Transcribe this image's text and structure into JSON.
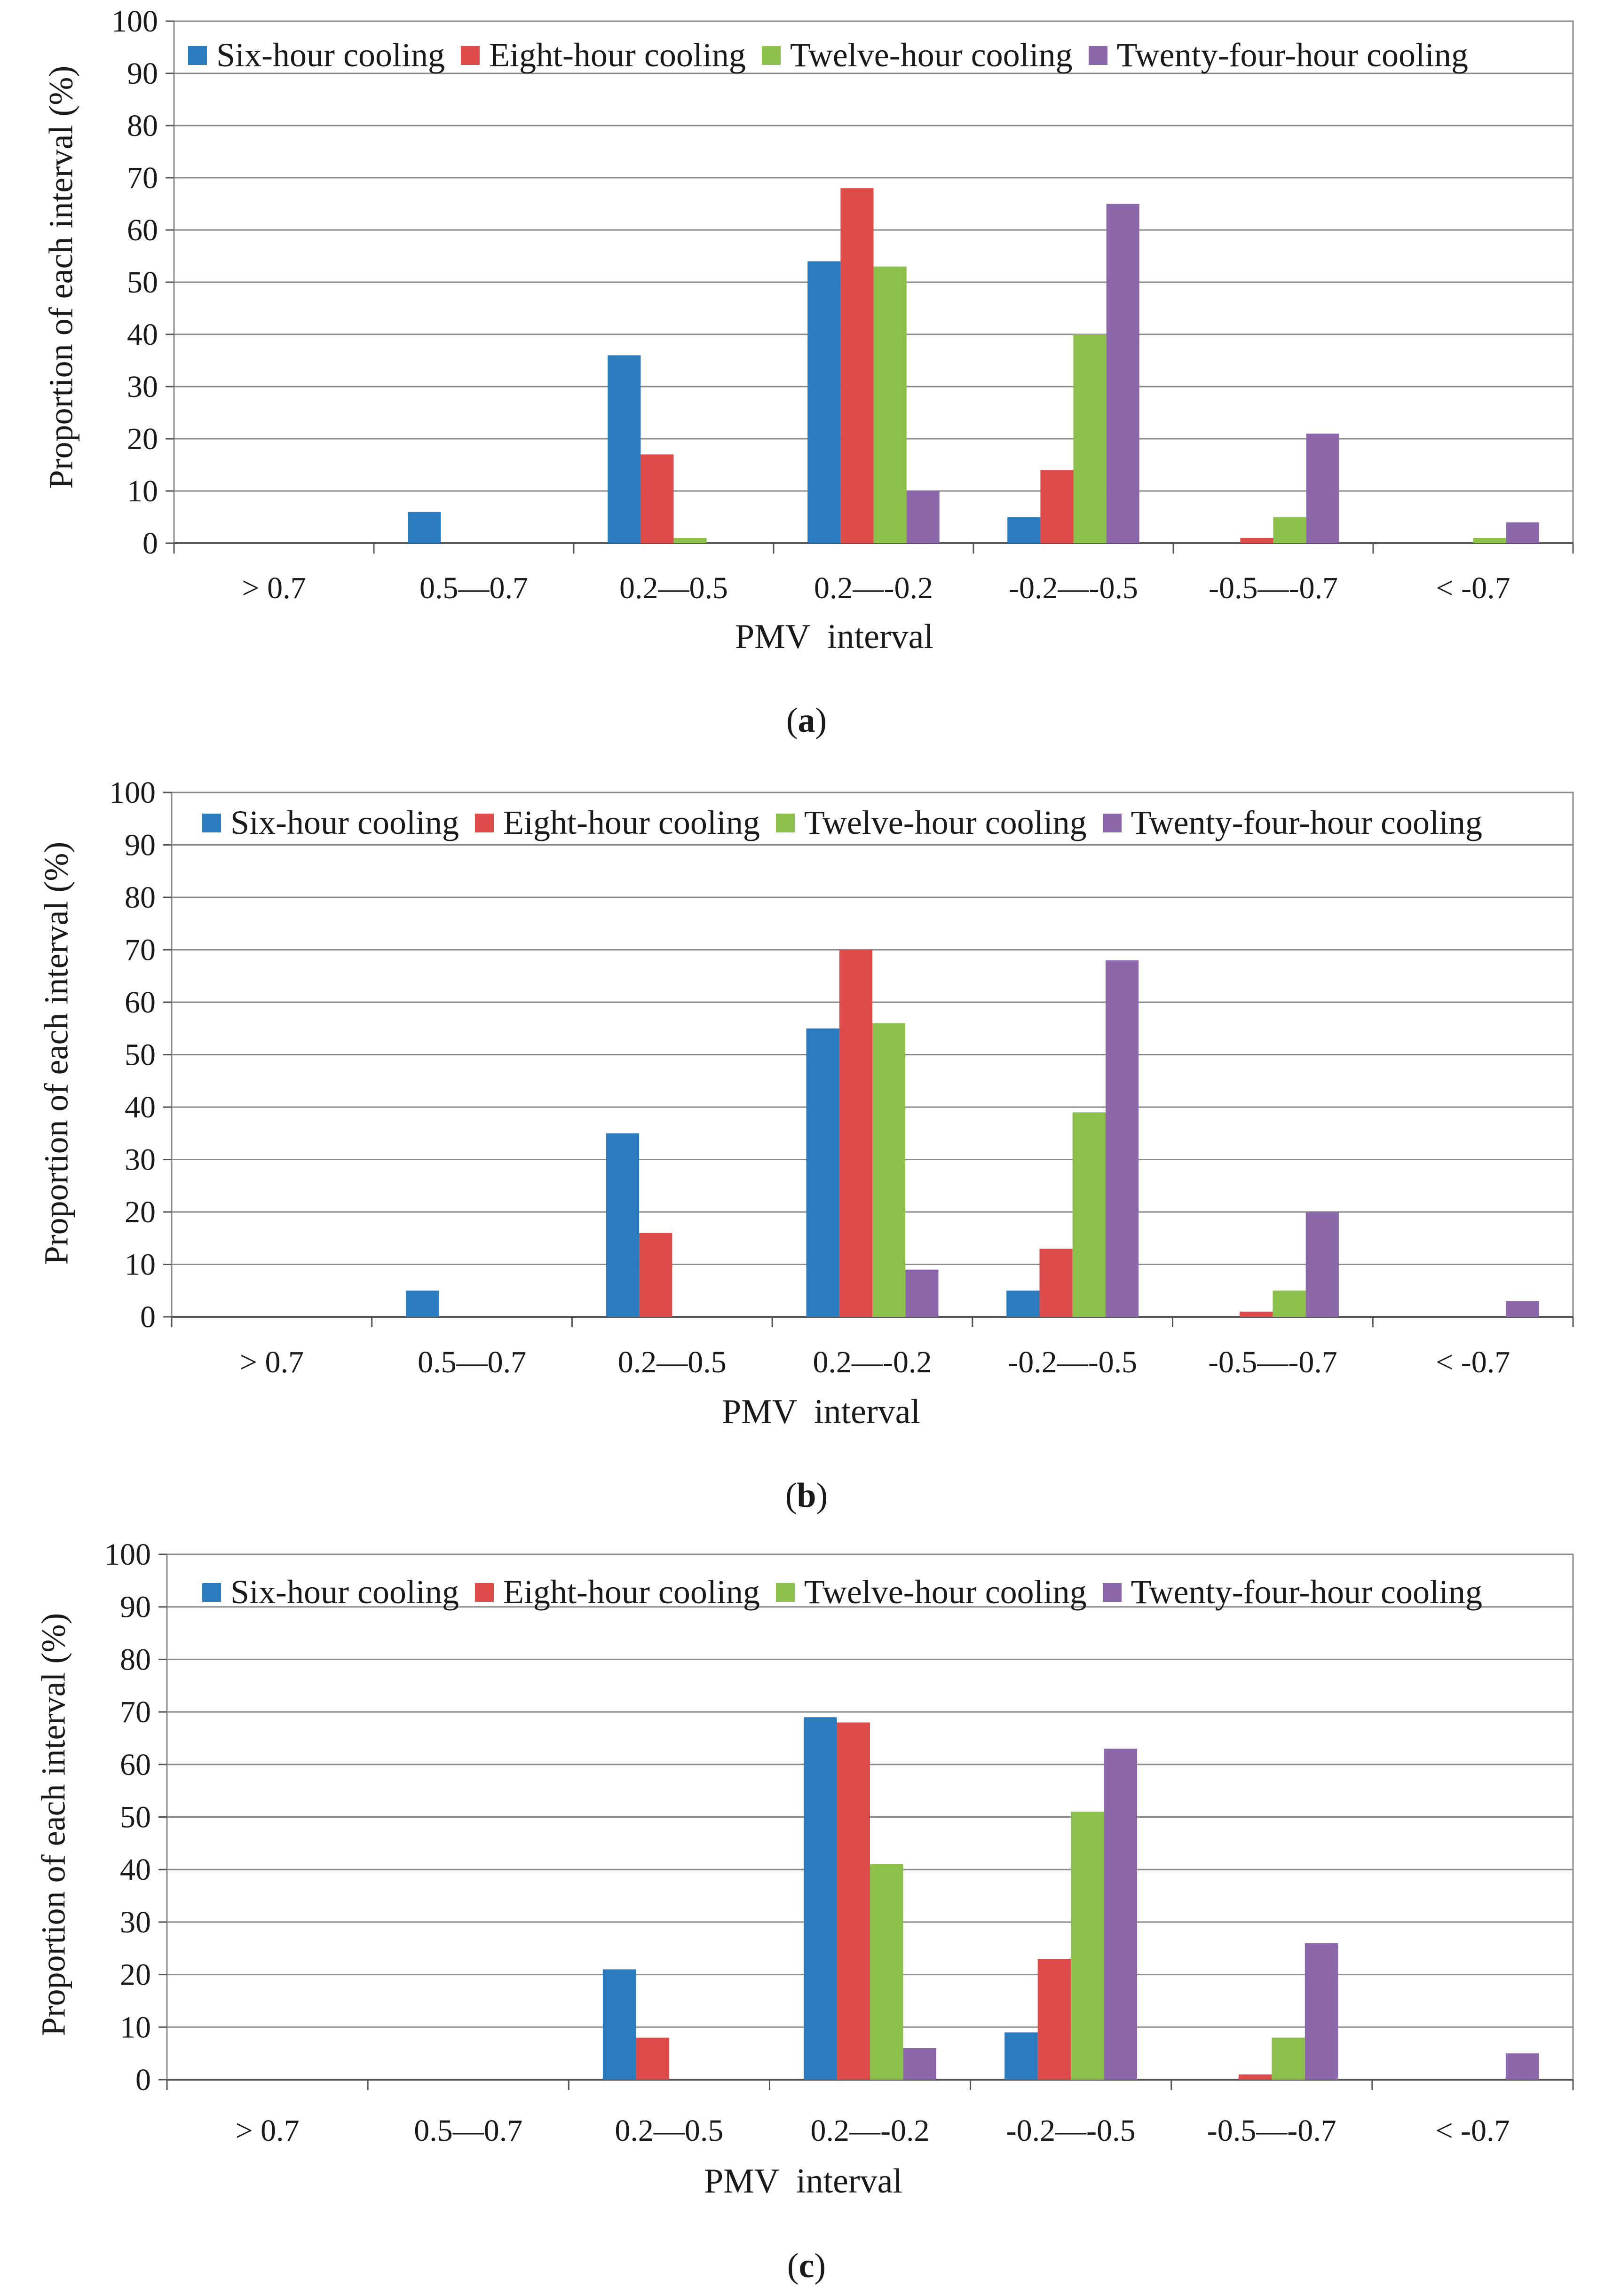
{
  "colors": {
    "six": "#2b7bbf",
    "eight": "#dd4b4b",
    "twelve": "#8cbf4b",
    "twentyfour": "#8c68aa",
    "grid": "#8a8a8a",
    "axis": "#555555",
    "text": "#1a1a1a"
  },
  "legend": {
    "six": "Six-hour cooling",
    "eight": "Eight-hour cooling",
    "twelve": "Twelve-hour cooling",
    "twentyfour": "Twenty-four-hour cooling"
  },
  "chart_data": [
    {
      "type": "bar",
      "caption_prefix": "(",
      "caption_letter": "a",
      "caption_suffix": ")",
      "xlabel": "PMV  interval",
      "ylabel": "Proportion of each interval (%)",
      "ylim": [
        0,
        100
      ],
      "yticks": [
        0,
        10,
        20,
        30,
        40,
        50,
        60,
        70,
        80,
        90,
        100
      ],
      "categories": [
        "> 0.7",
        "0.5—0.7",
        "0.2—0.5",
        "0.2—-0.2",
        "-0.2—-0.5",
        "-0.5—-0.7",
        "< -0.7"
      ],
      "series": [
        {
          "name": "Six-hour cooling",
          "key": "six",
          "values": [
            0,
            6,
            36,
            54,
            5,
            0,
            0
          ]
        },
        {
          "name": "Eight-hour cooling",
          "key": "eight",
          "values": [
            0,
            0,
            17,
            68,
            14,
            1,
            0
          ]
        },
        {
          "name": "Twelve-hour cooling",
          "key": "twelve",
          "values": [
            0,
            0,
            1,
            53,
            40,
            5,
            1
          ]
        },
        {
          "name": "Twenty-four-hour cooling",
          "key": "twentyfour",
          "values": [
            0,
            0,
            0,
            10,
            65,
            21,
            4
          ]
        }
      ],
      "grid": true,
      "legend_position": "top"
    },
    {
      "type": "bar",
      "caption_prefix": "(",
      "caption_letter": "b",
      "caption_suffix": ")",
      "xlabel": "PMV  interval",
      "ylabel": "Proportion of each interval (%)",
      "ylim": [
        0,
        100
      ],
      "yticks": [
        0,
        10,
        20,
        30,
        40,
        50,
        60,
        70,
        80,
        90,
        100
      ],
      "categories": [
        "> 0.7",
        "0.5—0.7",
        "0.2—0.5",
        "0.2—-0.2",
        "-0.2—-0.5",
        "-0.5—-0.7",
        "< -0.7"
      ],
      "series": [
        {
          "name": "Six-hour cooling",
          "key": "six",
          "values": [
            0,
            5,
            35,
            55,
            5,
            0,
            0
          ]
        },
        {
          "name": "Eight-hour cooling",
          "key": "eight",
          "values": [
            0,
            0,
            16,
            70,
            13,
            1,
            0
          ]
        },
        {
          "name": "Twelve-hour cooling",
          "key": "twelve",
          "values": [
            0,
            0,
            0,
            56,
            39,
            5,
            0
          ]
        },
        {
          "name": "Twenty-four-hour cooling",
          "key": "twentyfour",
          "values": [
            0,
            0,
            0,
            9,
            68,
            20,
            3
          ]
        }
      ],
      "grid": true,
      "legend_position": "top"
    },
    {
      "type": "bar",
      "caption_prefix": "(",
      "caption_letter": "c",
      "caption_suffix": ")",
      "xlabel": "PMV  interval",
      "ylabel": "Proportion of each interval (%)",
      "ylim": [
        0,
        100
      ],
      "yticks": [
        0,
        10,
        20,
        30,
        40,
        50,
        60,
        70,
        80,
        90,
        100
      ],
      "categories": [
        "> 0.7",
        "0.5—0.7",
        "0.2—0.5",
        "0.2—-0.2",
        "-0.2—-0.5",
        "-0.5—-0.7",
        "< -0.7"
      ],
      "series": [
        {
          "name": "Six-hour cooling",
          "key": "six",
          "values": [
            0,
            0,
            21,
            69,
            9,
            0,
            0
          ]
        },
        {
          "name": "Eight-hour cooling",
          "key": "eight",
          "values": [
            0,
            0,
            8,
            68,
            23,
            1,
            0
          ]
        },
        {
          "name": "Twelve-hour cooling",
          "key": "twelve",
          "values": [
            0,
            0,
            0,
            41,
            51,
            8,
            0
          ]
        },
        {
          "name": "Twenty-four-hour cooling",
          "key": "twentyfour",
          "values": [
            0,
            0,
            0,
            6,
            63,
            26,
            5
          ]
        }
      ],
      "grid": true,
      "legend_position": "top"
    }
  ]
}
